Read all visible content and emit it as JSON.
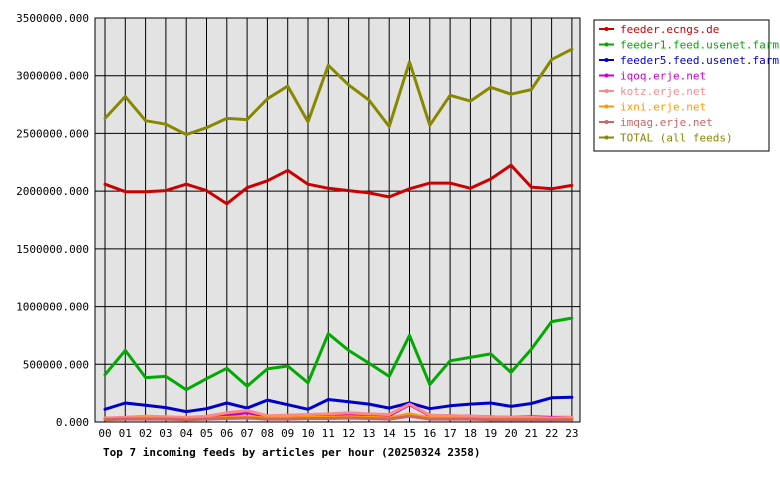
{
  "chart_data": {
    "type": "line",
    "title": "Top 7 incoming feeds by articles per hour (20250324 2358)",
    "xlabel": "",
    "ylabel": "",
    "grid": true,
    "legend_position": "right",
    "ylim": [
      0,
      3500000
    ],
    "y_ticks": [
      "0.000",
      "500000.000",
      "1000000.000",
      "1500000.000",
      "2000000.000",
      "2500000.000",
      "3000000.000",
      "3500000.000"
    ],
    "categories": [
      "00",
      "01",
      "02",
      "03",
      "04",
      "05",
      "06",
      "07",
      "08",
      "09",
      "10",
      "11",
      "12",
      "13",
      "14",
      "15",
      "16",
      "17",
      "18",
      "19",
      "20",
      "21",
      "22",
      "23"
    ],
    "series": [
      {
        "name": "feeder.ecngs.de",
        "color": "#cc0000",
        "values": [
          2060000,
          1995000,
          1995000,
          2005000,
          2060000,
          2005000,
          1890000,
          2030000,
          2090000,
          2180000,
          2060000,
          2025000,
          2005000,
          1985000,
          1950000,
          2020000,
          2070000,
          2070000,
          2025000,
          2105000,
          2225000,
          2035000,
          2020000,
          2050000
        ]
      },
      {
        "name": "feeder1.feed.usenet.farm",
        "color": "#00aa00",
        "values": [
          410000,
          620000,
          385000,
          395000,
          280000,
          375000,
          465000,
          310000,
          460000,
          485000,
          340000,
          765000,
          620000,
          510000,
          395000,
          750000,
          325000,
          530000,
          560000,
          590000,
          430000,
          630000,
          870000,
          900000
        ]
      },
      {
        "name": "feeder5.feed.usenet.farm",
        "color": "#0000cc",
        "values": [
          110000,
          165000,
          145000,
          125000,
          90000,
          115000,
          165000,
          120000,
          190000,
          150000,
          110000,
          195000,
          175000,
          155000,
          120000,
          165000,
          115000,
          140000,
          155000,
          165000,
          135000,
          160000,
          210000,
          215000
        ]
      },
      {
        "name": "iqoq.erje.net",
        "color": "#cc00cc",
        "values": [
          30000,
          40000,
          45000,
          40000,
          35000,
          45000,
          60000,
          80000,
          50000,
          55000,
          60000,
          65000,
          70000,
          60000,
          55000,
          150000,
          55000,
          55000,
          50000,
          45000,
          40000,
          45000,
          40000,
          40000
        ]
      },
      {
        "name": "kotz.erje.net",
        "color": "#ff8888",
        "values": [
          35000,
          40000,
          50000,
          45000,
          40000,
          50000,
          80000,
          100000,
          55000,
          60000,
          65000,
          70000,
          80000,
          70000,
          65000,
          155000,
          60000,
          55000,
          50000,
          45000,
          40000,
          40000,
          35000,
          40000
        ]
      },
      {
        "name": "ixni.erje.net",
        "color": "#ff9900",
        "values": [
          25000,
          30000,
          35000,
          30000,
          25000,
          30000,
          40000,
          45000,
          35000,
          35000,
          40000,
          40000,
          45000,
          40000,
          35000,
          70000,
          35000,
          35000,
          30000,
          30000,
          25000,
          25000,
          20000,
          25000
        ]
      },
      {
        "name": "imqag.erje.net",
        "color": "#cc6666",
        "values": [
          20000,
          25000,
          25000,
          25000,
          20000,
          25000,
          30000,
          35000,
          25000,
          25000,
          30000,
          30000,
          35000,
          30000,
          25000,
          50000,
          25000,
          25000,
          25000,
          20000,
          20000,
          20000,
          20000,
          20000
        ]
      },
      {
        "name": "TOTAL (all feeds)",
        "color": "#888800",
        "values": [
          2630000,
          2820000,
          2610000,
          2580000,
          2490000,
          2550000,
          2630000,
          2620000,
          2800000,
          2910000,
          2600000,
          3090000,
          2920000,
          2790000,
          2560000,
          3120000,
          2570000,
          2830000,
          2780000,
          2900000,
          2840000,
          2880000,
          3140000,
          3230000
        ]
      }
    ]
  }
}
